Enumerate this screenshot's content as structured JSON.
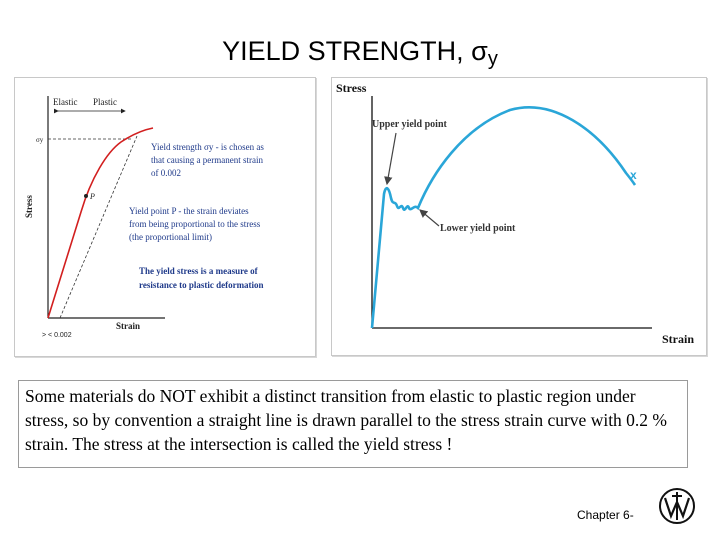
{
  "title": {
    "main": "YIELD STRENGTH, σ",
    "subscript": "y"
  },
  "left_figure": {
    "region_elastic": "Elastic",
    "region_plastic": "Plastic",
    "y_axis_label": "Stress",
    "x_axis_label": "Strain",
    "sigma_label": "σy",
    "point_label": "P",
    "x_tick_text": ">    <   0.002",
    "yield_strength_text": [
      "Yield strength σy - is chosen as",
      "that causing a permanent strain",
      "of 0.002"
    ],
    "yield_point_text": [
      "Yield point   P - the strain deviates",
      "from being proportional to the stress",
      "(the proportional limit)"
    ],
    "yield_stress_text": [
      "The yield stress is a measure of",
      "resistance to plastic deformation"
    ]
  },
  "right_figure": {
    "y_axis_label": "Stress",
    "x_axis_label": "Strain",
    "upper_yield_label": "Upper yield point",
    "lower_yield_label": "Lower yield point",
    "fracture_mark": "x"
  },
  "caption": "Some materials do NOT exhibit a distinct transition from elastic to plastic region under stress, so by convention a straight line is drawn parallel to the stress strain curve with 0.2 % strain. The stress at the intersection is called the yield stress !",
  "footer": {
    "chapter": "Chapter 6-"
  },
  "colors": {
    "curve_red": "#d21f1f",
    "curve_blue": "#2aa6d8",
    "annotation_text": "#1f3a8a",
    "arrow": "#444444"
  }
}
